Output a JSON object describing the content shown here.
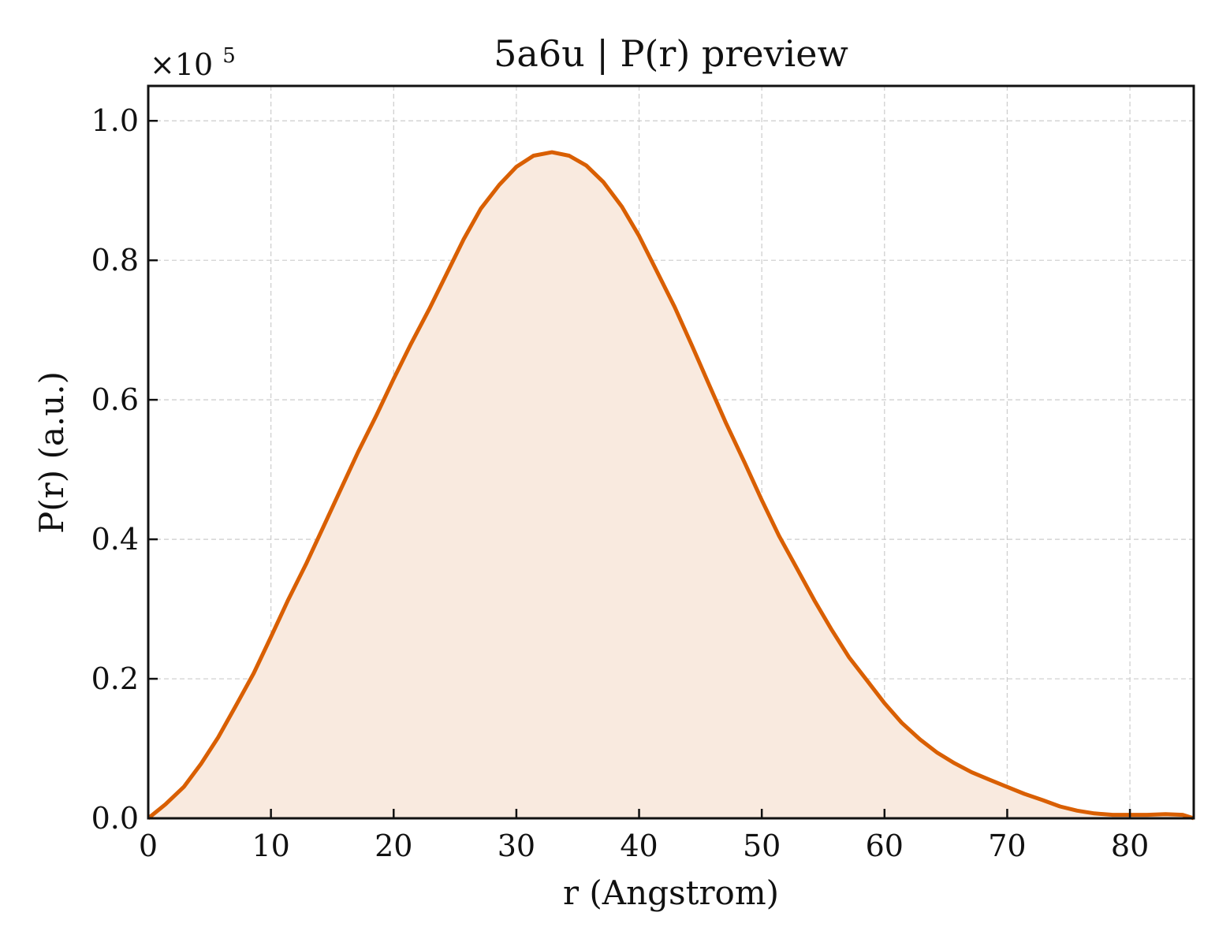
{
  "chart_data": {
    "type": "area",
    "title": "5a6u | P(r) preview",
    "xlabel": "r (Angstrom)",
    "ylabel": "P(r) (a.u.)",
    "y_multiplier_label": "×10",
    "y_multiplier_exponent": "5",
    "xlim": [
      0,
      85.2
    ],
    "ylim": [
      0,
      1.05
    ],
    "x_ticks": [
      0,
      10,
      20,
      30,
      40,
      50,
      60,
      70,
      80
    ],
    "x_tick_labels": [
      "0",
      "10",
      "20",
      "30",
      "40",
      "50",
      "60",
      "70",
      "80"
    ],
    "y_ticks": [
      0,
      0.2,
      0.4,
      0.6,
      0.8,
      1.0
    ],
    "y_tick_labels": [
      "0.0",
      "0.2",
      "0.4",
      "0.6",
      "0.8",
      "1.0"
    ],
    "grid": true,
    "colors": {
      "line": "#d95f02",
      "fill": "#f9eadf"
    },
    "series": [
      {
        "x": [
          0,
          1.4,
          2.9,
          4.3,
          5.7,
          7.1,
          8.6,
          10,
          11.4,
          12.9,
          14.3,
          15.7,
          17.1,
          18.6,
          20,
          21.4,
          22.9,
          24.3,
          25.7,
          27.1,
          28.6,
          30,
          31.4,
          32.9,
          34.3,
          35.7,
          37.1,
          38.6,
          40,
          41.4,
          42.9,
          44.3,
          45.7,
          47.1,
          48.6,
          50,
          51.4,
          52.9,
          54.3,
          55.7,
          57.1,
          58.6,
          60,
          61.4,
          62.9,
          64.3,
          65.7,
          67.1,
          68.6,
          70,
          71.4,
          72.9,
          74.3,
          75.7,
          77.1,
          78.6,
          80,
          81.4,
          82.9,
          84.3,
          85.2
        ],
        "y": [
          0.0,
          0.02,
          0.045,
          0.078,
          0.116,
          0.16,
          0.208,
          0.26,
          0.313,
          0.366,
          0.419,
          0.472,
          0.525,
          0.578,
          0.63,
          0.68,
          0.73,
          0.78,
          0.83,
          0.874,
          0.908,
          0.934,
          0.95,
          0.955,
          0.95,
          0.936,
          0.912,
          0.877,
          0.835,
          0.786,
          0.733,
          0.678,
          0.622,
          0.566,
          0.51,
          0.456,
          0.405,
          0.357,
          0.312,
          0.27,
          0.231,
          0.197,
          0.165,
          0.137,
          0.113,
          0.094,
          0.079,
          0.066,
          0.055,
          0.045,
          0.035,
          0.026,
          0.017,
          0.011,
          0.007,
          0.005,
          0.005,
          0.005,
          0.006,
          0.005,
          0.0
        ]
      }
    ]
  }
}
